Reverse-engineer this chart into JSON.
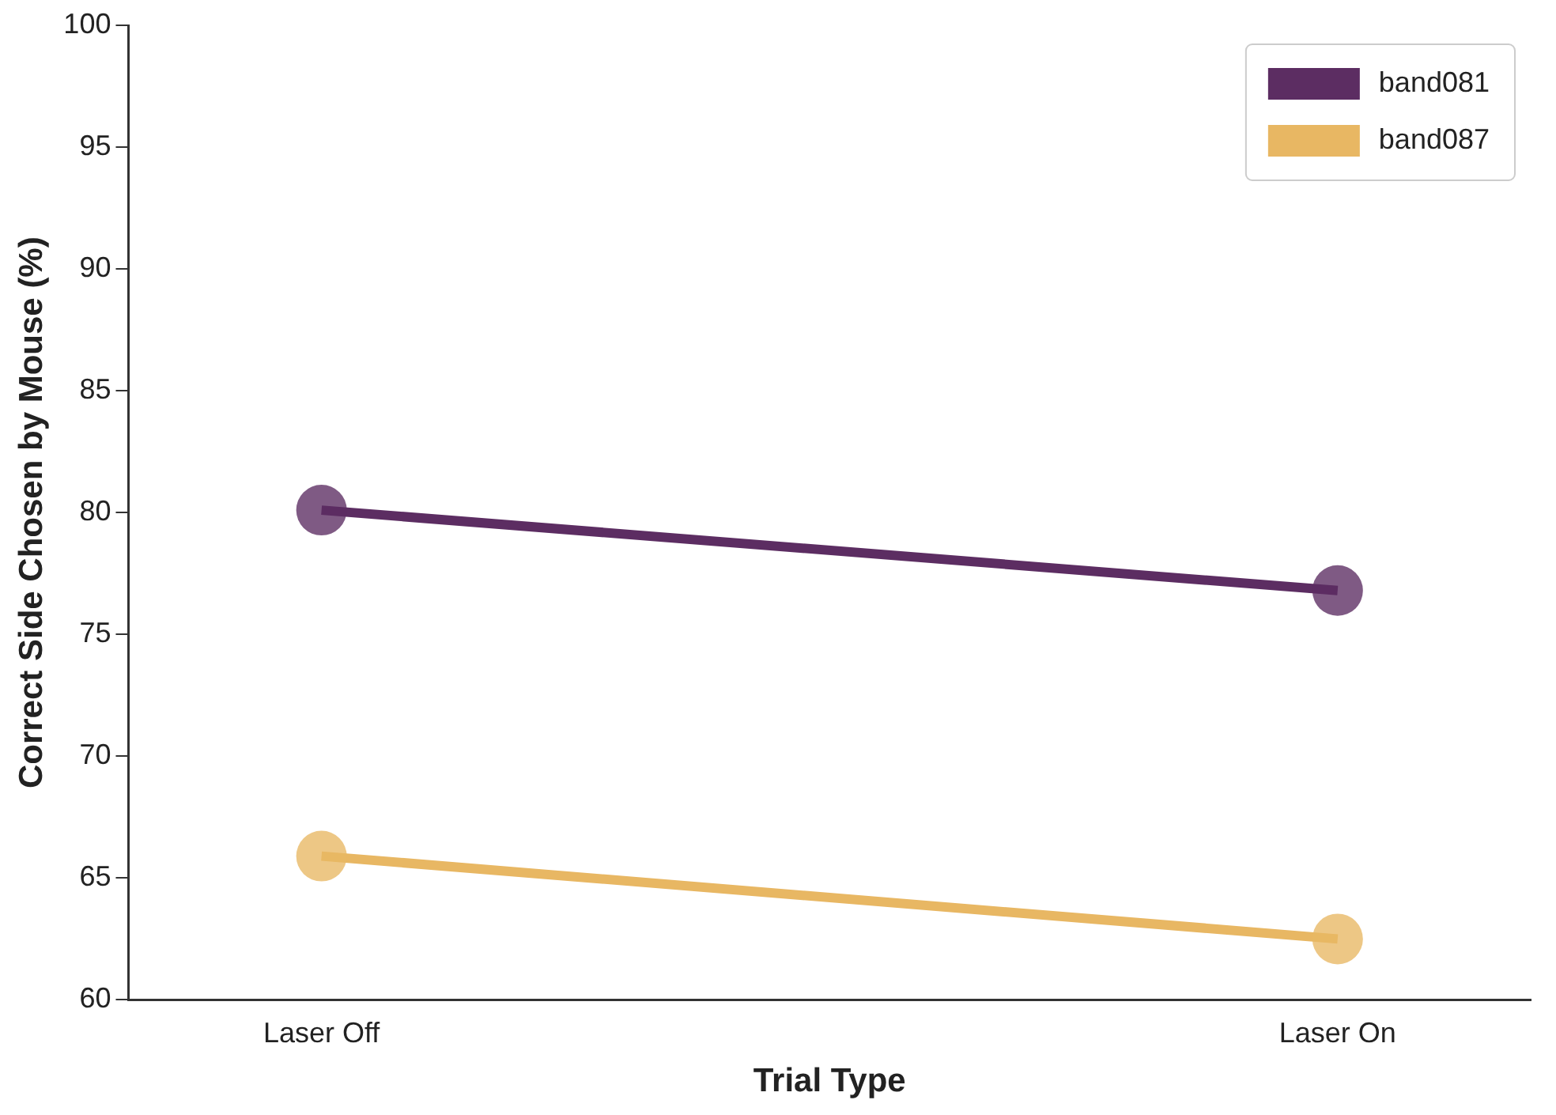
{
  "chart_data": {
    "type": "line",
    "xlabel": "Trial Type",
    "ylabel": "Correct Side Chosen by Mouse (%)",
    "categories": [
      "Laser Off",
      "Laser On"
    ],
    "series": [
      {
        "name": "band081",
        "color": "#5c2d62",
        "values": [
          80.1,
          76.8
        ]
      },
      {
        "name": "band087",
        "color": "#e8b763",
        "values": [
          65.9,
          62.5
        ]
      }
    ],
    "ylim": [
      60,
      100
    ],
    "yticks": [
      60,
      65,
      70,
      75,
      80,
      85,
      90,
      95,
      100
    ],
    "grid": false,
    "legend": "top right",
    "marker": "circle"
  }
}
